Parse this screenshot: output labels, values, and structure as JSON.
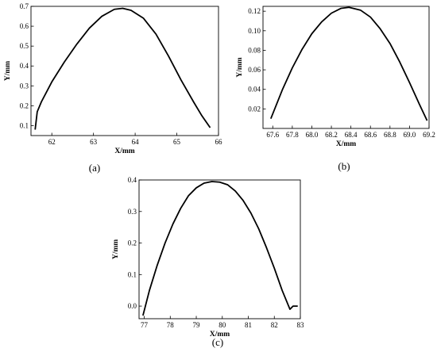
{
  "chart_data": [
    {
      "type": "line",
      "panel_label": "(a)",
      "xlabel": "X/mm",
      "ylabel": "Y/mm",
      "xlim": [
        61.5,
        66.0
      ],
      "ylim": [
        0.05,
        0.7
      ],
      "xticks": [
        62,
        63,
        64,
        65,
        66
      ],
      "xtick_labels": [
        "62",
        "63",
        "64",
        "65",
        "66"
      ],
      "yticks": [
        0.1,
        0.2,
        0.3,
        0.4,
        0.5,
        0.6,
        0.7
      ],
      "ytick_labels": [
        "0.1",
        "0.2",
        "0.3",
        "0.4",
        "0.5",
        "0.6",
        "0.7"
      ],
      "series": [
        {
          "x": [
            61.6,
            61.65,
            61.75,
            62.0,
            62.3,
            62.6,
            62.9,
            63.2,
            63.5,
            63.7,
            63.9,
            64.2,
            64.5,
            64.8,
            65.1,
            65.4,
            65.6,
            65.8
          ],
          "y": [
            0.08,
            0.17,
            0.22,
            0.32,
            0.42,
            0.51,
            0.59,
            0.65,
            0.685,
            0.69,
            0.68,
            0.64,
            0.56,
            0.45,
            0.33,
            0.22,
            0.15,
            0.09
          ]
        }
      ]
    },
    {
      "type": "line",
      "panel_label": "(b)",
      "xlabel": "X/mm",
      "ylabel": "Y/mm",
      "xlim": [
        67.5,
        69.2
      ],
      "ylim": [
        0.0,
        0.125
      ],
      "xticks": [
        67.6,
        67.8,
        68.0,
        68.2,
        68.4,
        68.6,
        68.8,
        69.0,
        69.2
      ],
      "xtick_labels": [
        "67.6",
        "67.8",
        "68.0",
        "68.2",
        "68.4",
        "68.6",
        "68.8",
        "69.0",
        "69.2"
      ],
      "yticks": [
        0.02,
        0.04,
        0.06,
        0.08,
        0.1,
        0.12
      ],
      "ytick_labels": [
        "0.02",
        "0.04",
        "0.06",
        "0.08",
        "0.10",
        "0.12"
      ],
      "series": [
        {
          "x": [
            67.58,
            67.7,
            67.8,
            67.9,
            68.0,
            68.1,
            68.2,
            68.3,
            68.38,
            68.5,
            68.6,
            68.7,
            68.8,
            68.9,
            69.0,
            69.1,
            69.18
          ],
          "y": [
            0.01,
            0.04,
            0.062,
            0.081,
            0.097,
            0.109,
            0.118,
            0.123,
            0.124,
            0.121,
            0.114,
            0.102,
            0.087,
            0.068,
            0.047,
            0.025,
            0.008
          ]
        }
      ]
    },
    {
      "type": "line",
      "panel_label": "(c)",
      "xlabel": "X/mm",
      "ylabel": "Y/mm",
      "xlim": [
        76.8,
        83.0
      ],
      "ylim": [
        -0.04,
        0.4
      ],
      "xticks": [
        77,
        78,
        79,
        80,
        81,
        82,
        83
      ],
      "xtick_labels": [
        "77",
        "78",
        "79",
        "80",
        "81",
        "82",
        "83"
      ],
      "yticks": [
        0.0,
        0.1,
        0.2,
        0.3,
        0.4
      ],
      "ytick_labels": [
        "0.0",
        "0.1",
        "0.2",
        "0.3",
        "0.4"
      ],
      "series": [
        {
          "x": [
            76.95,
            77.2,
            77.5,
            77.8,
            78.1,
            78.4,
            78.7,
            79.0,
            79.3,
            79.6,
            79.9,
            80.2,
            80.5,
            80.8,
            81.1,
            81.4,
            81.7,
            82.0,
            82.3,
            82.6,
            82.72,
            82.9
          ],
          "y": [
            -0.03,
            0.05,
            0.13,
            0.2,
            0.26,
            0.31,
            0.35,
            0.375,
            0.39,
            0.395,
            0.393,
            0.385,
            0.365,
            0.335,
            0.295,
            0.245,
            0.185,
            0.12,
            0.05,
            -0.01,
            0.0,
            0.0
          ]
        }
      ]
    }
  ]
}
